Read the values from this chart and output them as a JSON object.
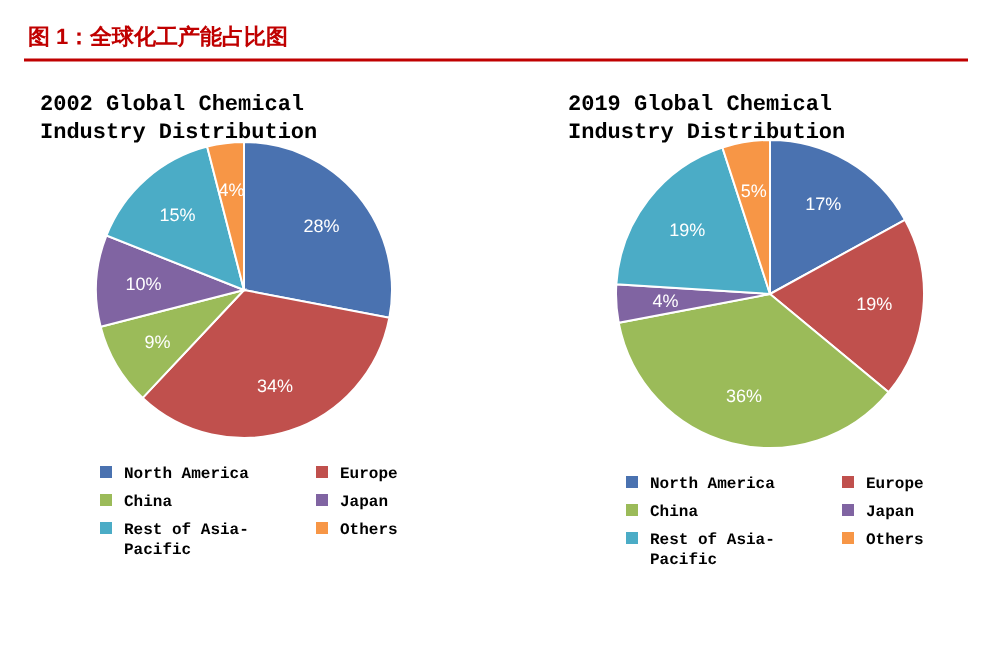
{
  "chart_data": [
    {
      "type": "pie",
      "title": "2002 Global Chemical Industry Distribution",
      "annotations": [
        "图 1：全球化工产能占比图"
      ],
      "categories": [
        "North America",
        "Europe",
        "China",
        "Japan",
        "Rest of Asia-Pacific",
        "Others"
      ],
      "values": [
        28,
        34,
        9,
        10,
        15,
        4
      ],
      "value_labels": [
        "28%",
        "34%",
        "9%",
        "10%",
        "15%",
        "4%"
      ],
      "colors": [
        "#4a72b0",
        "#c0504d",
        "#9bbb59",
        "#8064a2",
        "#4bacc6",
        "#f79646"
      ],
      "legend": "bottom"
    },
    {
      "type": "pie",
      "title": "2019 Global Chemical Industry Distribution",
      "categories": [
        "North America",
        "Europe",
        "China",
        "Japan",
        "Rest of Asia-Pacific",
        "Others"
      ],
      "values": [
        17,
        19,
        36,
        4,
        19,
        5
      ],
      "value_labels": [
        "17%",
        "19%",
        "36%",
        "4%",
        "19%",
        "5%"
      ],
      "colors": [
        "#4a72b0",
        "#c0504d",
        "#9bbb59",
        "#8064a2",
        "#4bacc6",
        "#f79646"
      ],
      "legend": "bottom"
    }
  ]
}
